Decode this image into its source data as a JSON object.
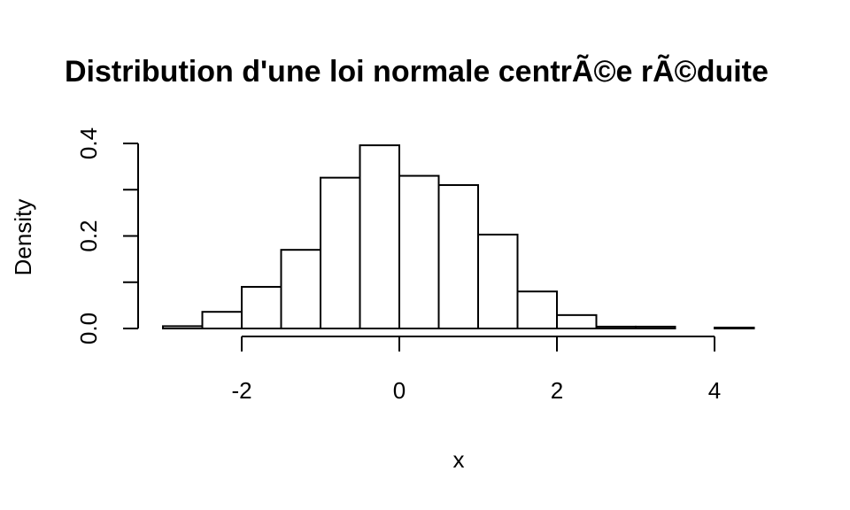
{
  "chart_data": {
    "type": "bar",
    "title": "Distribution d'une loi normale centrÃ©e rÃ©duite",
    "xlabel": "x",
    "ylabel": "Density",
    "xlim": [
      -3,
      4.5
    ],
    "ylim": [
      0,
      0.4
    ],
    "x_ticks": [
      -2,
      0,
      2,
      4
    ],
    "x_tick_labels": [
      "-2",
      "0",
      "2",
      "4"
    ],
    "y_ticks": [
      0,
      0.1,
      0.2,
      0.3,
      0.4
    ],
    "y_tick_labels": [
      "0.0",
      "",
      "0.2",
      "",
      "0.4"
    ],
    "bin_width": 0.5,
    "bins": [
      {
        "start": -3.0,
        "end": -2.5,
        "density": 0.005
      },
      {
        "start": -2.5,
        "end": -2.0,
        "density": 0.036
      },
      {
        "start": -2.0,
        "end": -1.5,
        "density": 0.09
      },
      {
        "start": -1.5,
        "end": -1.0,
        "density": 0.17
      },
      {
        "start": -1.0,
        "end": -0.5,
        "density": 0.326
      },
      {
        "start": -0.5,
        "end": 0.0,
        "density": 0.396
      },
      {
        "start": 0.0,
        "end": 0.5,
        "density": 0.33
      },
      {
        "start": 0.5,
        "end": 1.0,
        "density": 0.31
      },
      {
        "start": 1.0,
        "end": 1.5,
        "density": 0.203
      },
      {
        "start": 1.5,
        "end": 2.0,
        "density": 0.08
      },
      {
        "start": 2.0,
        "end": 2.5,
        "density": 0.029
      },
      {
        "start": 2.5,
        "end": 3.0,
        "density": 0.004
      },
      {
        "start": 3.0,
        "end": 3.5,
        "density": 0.004
      },
      {
        "start": 3.5,
        "end": 4.0,
        "density": 0.0
      },
      {
        "start": 4.0,
        "end": 4.5,
        "density": 0.002
      }
    ],
    "grid": false,
    "legend": "none"
  }
}
